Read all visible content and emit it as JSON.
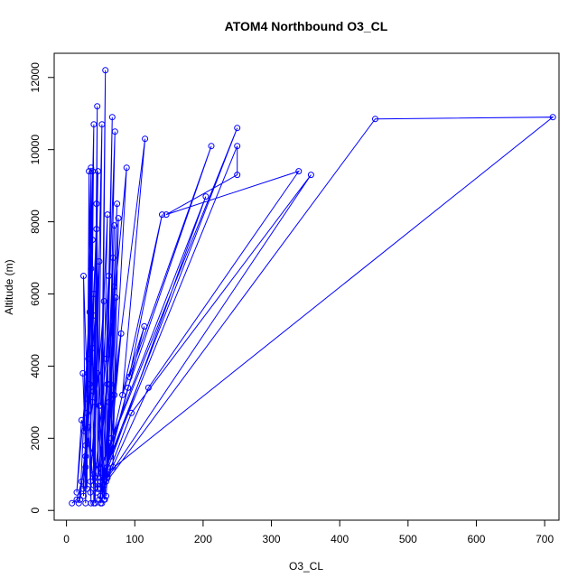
{
  "chart_data": {
    "type": "line",
    "title": "ATOM4 Northbound O3_CL",
    "xlabel": "O3_CL",
    "ylabel": "Altitude (m)",
    "xlim": [
      -18,
      721
    ],
    "ylim": [
      -270,
      12670
    ],
    "xticks": [
      0,
      100,
      200,
      300,
      400,
      500,
      600,
      700
    ],
    "yticks": [
      0,
      2000,
      4000,
      6000,
      8000,
      10000,
      12000
    ],
    "grid": false,
    "legend": "none",
    "series": [
      {
        "color": "#0000ff",
        "marker": "open-circle",
        "points": [
          [
            8,
            200
          ],
          [
            15,
            300
          ],
          [
            22,
            800
          ],
          [
            18,
            200
          ],
          [
            28,
            1500
          ],
          [
            24,
            3800
          ],
          [
            30,
            600
          ],
          [
            33,
            9400
          ],
          [
            36,
            200
          ],
          [
            25,
            6500
          ],
          [
            28,
            200
          ],
          [
            40,
            10700
          ],
          [
            35,
            500
          ],
          [
            38,
            9400
          ],
          [
            30,
            2700
          ],
          [
            42,
            200
          ],
          [
            45,
            11200
          ],
          [
            40,
            1000
          ],
          [
            46,
            9400
          ],
          [
            38,
            4500
          ],
          [
            40,
            200
          ],
          [
            52,
            10700
          ],
          [
            46,
            600
          ],
          [
            44,
            8500
          ],
          [
            50,
            200
          ],
          [
            57,
            12200
          ],
          [
            52,
            700
          ],
          [
            60,
            8200
          ],
          [
            48,
            2900
          ],
          [
            55,
            300
          ],
          [
            67,
            10900
          ],
          [
            58,
            800
          ],
          [
            70,
            7900
          ],
          [
            62,
            3000
          ],
          [
            52,
            200
          ],
          [
            71,
            10500
          ],
          [
            60,
            1000
          ],
          [
            74,
            8500
          ],
          [
            64,
            3500
          ],
          [
            56,
            300
          ],
          [
            76,
            8100
          ],
          [
            68,
            1200
          ],
          [
            70,
            6200
          ],
          [
            66,
            3200
          ],
          [
            58,
            400
          ],
          [
            72,
            5900
          ],
          [
            65,
            1500
          ],
          [
            68,
            7000
          ],
          [
            60,
            3500
          ],
          [
            44,
            500
          ],
          [
            88,
            9500
          ],
          [
            70,
            3200
          ],
          [
            80,
            4900
          ],
          [
            66,
            2000
          ],
          [
            50,
            400
          ],
          [
            115,
            10300
          ],
          [
            82,
            3200
          ],
          [
            114,
            5100
          ],
          [
            60,
            1200
          ],
          [
            48,
            300
          ],
          [
            140,
            8200
          ],
          [
            92,
            3700
          ],
          [
            212,
            10100
          ],
          [
            90,
            3400
          ],
          [
            50,
            600
          ],
          [
            204,
            8700
          ],
          [
            40,
            700
          ],
          [
            250,
            10600
          ],
          [
            50,
            800
          ],
          [
            250,
            10100
          ],
          [
            250,
            9300
          ],
          [
            146,
            8200
          ],
          [
            340,
            9400
          ],
          [
            120,
            3400
          ],
          [
            60,
            900
          ],
          [
            358,
            9300
          ],
          [
            95,
            2700
          ],
          [
            55,
            700
          ],
          [
            452,
            10850
          ],
          [
            712,
            10900
          ],
          [
            50,
            900
          ],
          [
            22,
            2500
          ],
          [
            15,
            500
          ],
          [
            32,
            4200
          ],
          [
            28,
            1800
          ],
          [
            20,
            300
          ],
          [
            36,
            6700
          ],
          [
            26,
            2200
          ],
          [
            34,
            5500
          ],
          [
            30,
            3100
          ],
          [
            25,
            400
          ],
          [
            38,
            7500
          ],
          [
            32,
            2300
          ],
          [
            40,
            6000
          ],
          [
            34,
            3500
          ],
          [
            36,
            9500
          ],
          [
            28,
            1200
          ],
          [
            44,
            7800
          ],
          [
            40,
            3300
          ],
          [
            24,
            600
          ],
          [
            42,
            5400
          ],
          [
            38,
            3000
          ],
          [
            48,
            6900
          ],
          [
            45,
            3800
          ],
          [
            35,
            800
          ],
          [
            55,
            5800
          ],
          [
            50,
            2900
          ],
          [
            62,
            6500
          ],
          [
            58,
            4200
          ],
          [
            42,
            900
          ]
        ]
      }
    ]
  }
}
